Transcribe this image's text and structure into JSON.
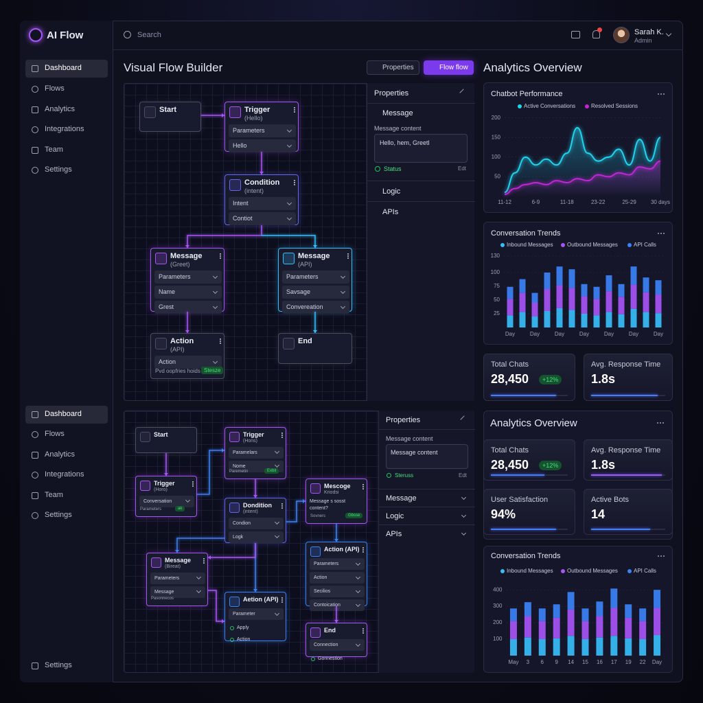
{
  "app": {
    "brand": "AI Flow",
    "search": "Search",
    "user_name": "Sarah K.",
    "user_role": "Admin"
  },
  "sidebar": {
    "top": [
      "Dashboard",
      "Flows",
      "Analytics",
      "Integrations",
      "Team",
      "Settings"
    ],
    "bottom": [
      "Dashboard",
      "Flows",
      "Analytics",
      "Integrations",
      "Team",
      "Settings"
    ],
    "footer": "Settings"
  },
  "builder": {
    "title": "Visual Flow Builder",
    "buttons": [
      "Properties",
      "Flow flow"
    ]
  },
  "flow1": {
    "nodes": [
      {
        "title": "Start"
      },
      {
        "title": "Trigger",
        "subtitle": "(Hello)",
        "fields": [
          "Parameters",
          "Hello"
        ]
      },
      {
        "title": "Condition",
        "subtitle": "(intent)",
        "fields": [
          "Intent",
          "Contiot"
        ]
      },
      {
        "title": "Message",
        "subtitle": "(Greet)",
        "fields": [
          "Parameters",
          "Name",
          "Grest"
        ]
      },
      {
        "title": "Message",
        "subtitle": "(API)",
        "fields": [
          "Parameters",
          "Savsage",
          "Convereation"
        ]
      },
      {
        "title": "Action",
        "subtitle": "(API)",
        "fields": [
          "Action"
        ],
        "footer": "Pvd oopfries hoids",
        "badge": "Stesze"
      },
      {
        "title": "End"
      }
    ]
  },
  "properties1": {
    "title": "Properties",
    "section": "Message",
    "label": "Message content",
    "text": "Hello, hem, Greetl",
    "status": "Status",
    "edit": "Edt",
    "sections": [
      "Logic",
      "APIs"
    ]
  },
  "flow2": {
    "nodes": [
      {
        "title": "Start"
      },
      {
        "title": "Trigger",
        "subtitle": "(Hons)",
        "fields": [
          "Paramelars",
          "Nome"
        ],
        "footer": "Paremetin",
        "badge": "Exbit"
      },
      {
        "title": "Trigger",
        "subtitle": "(Horo)",
        "fields": [
          "Conversation"
        ],
        "footer": "Parameters",
        "badge": "ak"
      },
      {
        "title": "Dondition",
        "subtitle": "(intent)",
        "fields": [
          "Condion",
          "Logk"
        ]
      },
      {
        "title": "Mescoge",
        "subtitle": "Kriodsi",
        "text": "Message s sosst content?",
        "footer": "Sovners",
        "badge": "Gbsse"
      },
      {
        "title": "Message",
        "subtitle": "(Bireat)",
        "fields": [
          "Parameters",
          "Message"
        ],
        "footer": "Pasonnecos"
      },
      {
        "title": "Aetion (API)",
        "fields": [
          "Parameter"
        ],
        "options": [
          "Apply",
          "Action"
        ]
      },
      {
        "title": "Action (API)",
        "fields": [
          "Parameters",
          "Action",
          "Secilios",
          "Contoication"
        ]
      },
      {
        "title": "End",
        "fields": [
          "Connection"
        ],
        "options": [
          "Gonnestion"
        ]
      }
    ]
  },
  "properties2": {
    "title": "Properties",
    "label": "Message content",
    "text": "Message content",
    "status": "Steruss",
    "edit": "Edt",
    "sections": [
      "Message",
      "Logic",
      "APIs"
    ]
  },
  "analytics": {
    "title": "Analytics Overview"
  },
  "chart_data": [
    {
      "type": "line",
      "title": "Chatbot Performance",
      "categories": [
        "11-12",
        null,
        null,
        "6-9",
        null,
        null,
        "11-18",
        null,
        null,
        "23-22",
        null,
        null,
        "25-29",
        null,
        null,
        "30 days"
      ],
      "series": [
        {
          "name": "Active Conversations",
          "color": "#22d3ee",
          "values": [
            10,
            60,
            100,
            80,
            95,
            80,
            110,
            175,
            110,
            90,
            100,
            120,
            80,
            145,
            90,
            150
          ]
        },
        {
          "name": "Resolved Sessions",
          "color": "#c026d3",
          "values": [
            5,
            20,
            30,
            35,
            30,
            40,
            35,
            45,
            40,
            55,
            50,
            60,
            55,
            75,
            70,
            90
          ]
        }
      ],
      "ylim": [
        0,
        210
      ],
      "yticks": [
        50,
        100,
        150,
        200
      ],
      "grid": true
    },
    {
      "type": "bar",
      "stacked": true,
      "title": "Conversation Trends",
      "categories": [
        "Day",
        null,
        "Day",
        null,
        "Day",
        null,
        "Day",
        null,
        "Day",
        null,
        "Day",
        null,
        "Day"
      ],
      "series": [
        {
          "name": "Inbound Messages",
          "color": "#38bdf8",
          "values": [
            22,
            28,
            20,
            30,
            35,
            32,
            25,
            22,
            28,
            24,
            34,
            28,
            26
          ]
        },
        {
          "name": "Outbound Messages",
          "color": "#a855f7",
          "values": [
            30,
            35,
            25,
            40,
            42,
            40,
            32,
            30,
            38,
            32,
            44,
            36,
            34
          ]
        },
        {
          "name": "API Calls",
          "color": "#3b82f6",
          "values": [
            22,
            25,
            18,
            30,
            34,
            34,
            22,
            22,
            29,
            23,
            33,
            27,
            26
          ]
        }
      ],
      "ylim": [
        0,
        140
      ],
      "yticks": [
        25,
        50,
        75,
        100,
        130
      ],
      "grid": true
    },
    {
      "type": "bar",
      "stacked": true,
      "title": "Conversation Trends",
      "categories": [
        "May",
        "3",
        "6",
        "9",
        "14",
        "15",
        "16",
        "17",
        "19",
        "22",
        "Day"
      ],
      "series": [
        {
          "name": "Inbound Messages",
          "color": "#38bdf8",
          "values": [
            100,
            110,
            100,
            105,
            120,
            100,
            110,
            120,
            105,
            100,
            125
          ]
        },
        {
          "name": "Outbound Messages",
          "color": "#a855f7",
          "values": [
            110,
            130,
            110,
            125,
            160,
            110,
            130,
            170,
            125,
            110,
            165
          ]
        },
        {
          "name": "API Calls",
          "color": "#3b82f6",
          "values": [
            77,
            85,
            77,
            82,
            107,
            77,
            89,
            118,
            82,
            77,
            110
          ]
        }
      ],
      "ylim": [
        0,
        430
      ],
      "yticks": [
        100,
        200,
        300,
        400
      ],
      "grid": true
    }
  ],
  "kpis1": [
    {
      "label": "Total Chats",
      "value": "28,450",
      "delta": "+12%"
    },
    {
      "label": "Avg. Response Time",
      "value": "1.8s"
    }
  ],
  "overview": {
    "title": "Analytics Overview",
    "kpis": [
      {
        "label": "Total Chats",
        "value": "28,450",
        "delta": "+12%"
      },
      {
        "label": "Avg. Response Time",
        "value": "1.8s"
      },
      {
        "label": "User Satisfaction",
        "value": "94%"
      },
      {
        "label": "Active Bots",
        "value": "14"
      }
    ]
  }
}
